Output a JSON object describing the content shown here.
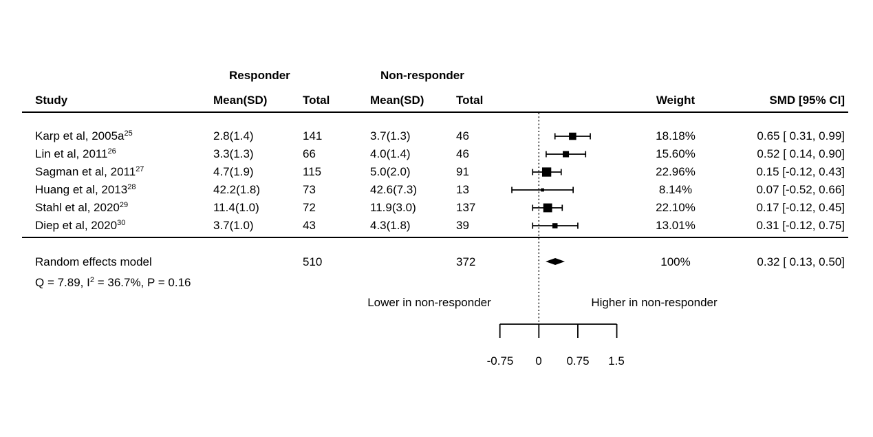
{
  "figure_header": {
    "study": "Study",
    "responder_group": "Responder",
    "nonresponder_group": "Non-responder",
    "responder_mean_sd": "Mean(SD)",
    "responder_total": "Total",
    "nonresponder_mean_sd": "Mean(SD)",
    "nonresponder_total": "Total",
    "weight": "Weight",
    "smd_ci": "SMD [95% CI]"
  },
  "chart_data": {
    "type": "forest",
    "effect_measure": "SMD",
    "x_axis": {
      "ticks": [
        -0.75,
        0,
        0.75,
        1.5
      ],
      "tick_labels": [
        "-0.75",
        "0",
        "0.75",
        "1.5"
      ],
      "range": [
        -0.75,
        1.5
      ],
      "zero_line": 0,
      "grid": false
    },
    "direction_labels": {
      "left": "Lower in non-responder",
      "right": "Higher in non-responder"
    },
    "studies": [
      {
        "label": "Karp et al, 2005a",
        "ref": "25",
        "responder_mean_sd": "2.8(1.4)",
        "responder_total": "141",
        "nonresponder_mean_sd": "3.7(1.3)",
        "nonresponder_total": "46",
        "weight_label": "18.18%",
        "weight_pct": 18.18,
        "smd": 0.65,
        "ci_low": 0.31,
        "ci_high": 0.99,
        "smd_ci_label": "0.65 [ 0.31, 0.99]"
      },
      {
        "label": "Lin et al, 2011",
        "ref": "26",
        "responder_mean_sd": "3.3(1.3)",
        "responder_total": "66",
        "nonresponder_mean_sd": "4.0(1.4)",
        "nonresponder_total": "46",
        "weight_label": "15.60%",
        "weight_pct": 15.6,
        "smd": 0.52,
        "ci_low": 0.14,
        "ci_high": 0.9,
        "smd_ci_label": "0.52 [ 0.14, 0.90]"
      },
      {
        "label": "Sagman et al, 2011",
        "ref": "27",
        "responder_mean_sd": "4.7(1.9)",
        "responder_total": "115",
        "nonresponder_mean_sd": "5.0(2.0)",
        "nonresponder_total": "91",
        "weight_label": "22.96%",
        "weight_pct": 22.96,
        "smd": 0.15,
        "ci_low": -0.12,
        "ci_high": 0.43,
        "smd_ci_label": "0.15 [-0.12, 0.43]"
      },
      {
        "label": "Huang et al, 2013",
        "ref": "28",
        "responder_mean_sd": "42.2(1.8)",
        "responder_total": "73",
        "nonresponder_mean_sd": "42.6(7.3)",
        "nonresponder_total": "13",
        "weight_label": "8.14%",
        "weight_pct": 8.14,
        "smd": 0.07,
        "ci_low": -0.52,
        "ci_high": 0.66,
        "smd_ci_label": "0.07 [-0.52, 0.66]"
      },
      {
        "label": "Stahl et al, 2020",
        "ref": "29",
        "responder_mean_sd": "11.4(1.0)",
        "responder_total": "72",
        "nonresponder_mean_sd": "11.9(3.0)",
        "nonresponder_total": "137",
        "weight_label": "22.10%",
        "weight_pct": 22.1,
        "smd": 0.17,
        "ci_low": -0.12,
        "ci_high": 0.45,
        "smd_ci_label": "0.17 [-0.12, 0.45]"
      },
      {
        "label": "Diep et al, 2020",
        "ref": "30",
        "responder_mean_sd": "3.7(1.0)",
        "responder_total": "43",
        "nonresponder_mean_sd": "4.3(1.8)",
        "nonresponder_total": "39",
        "weight_label": "13.01%",
        "weight_pct": 13.01,
        "smd": 0.31,
        "ci_low": -0.12,
        "ci_high": 0.75,
        "smd_ci_label": "0.31 [-0.12, 0.75]"
      }
    ],
    "summary": {
      "label": "Random effects model",
      "responder_total": "510",
      "nonresponder_total": "372",
      "weight_label": "100%",
      "smd": 0.32,
      "ci_low": 0.13,
      "ci_high": 0.5,
      "smd_ci_label": "0.32 [ 0.13, 0.50]",
      "heterogeneity": {
        "prefix": "Q = 7.89, I",
        "sup": "2",
        "suffix": " = 36.7%, P = 0.16"
      }
    },
    "colors": {
      "foreground": "#000000",
      "background": "#ffffff"
    }
  }
}
